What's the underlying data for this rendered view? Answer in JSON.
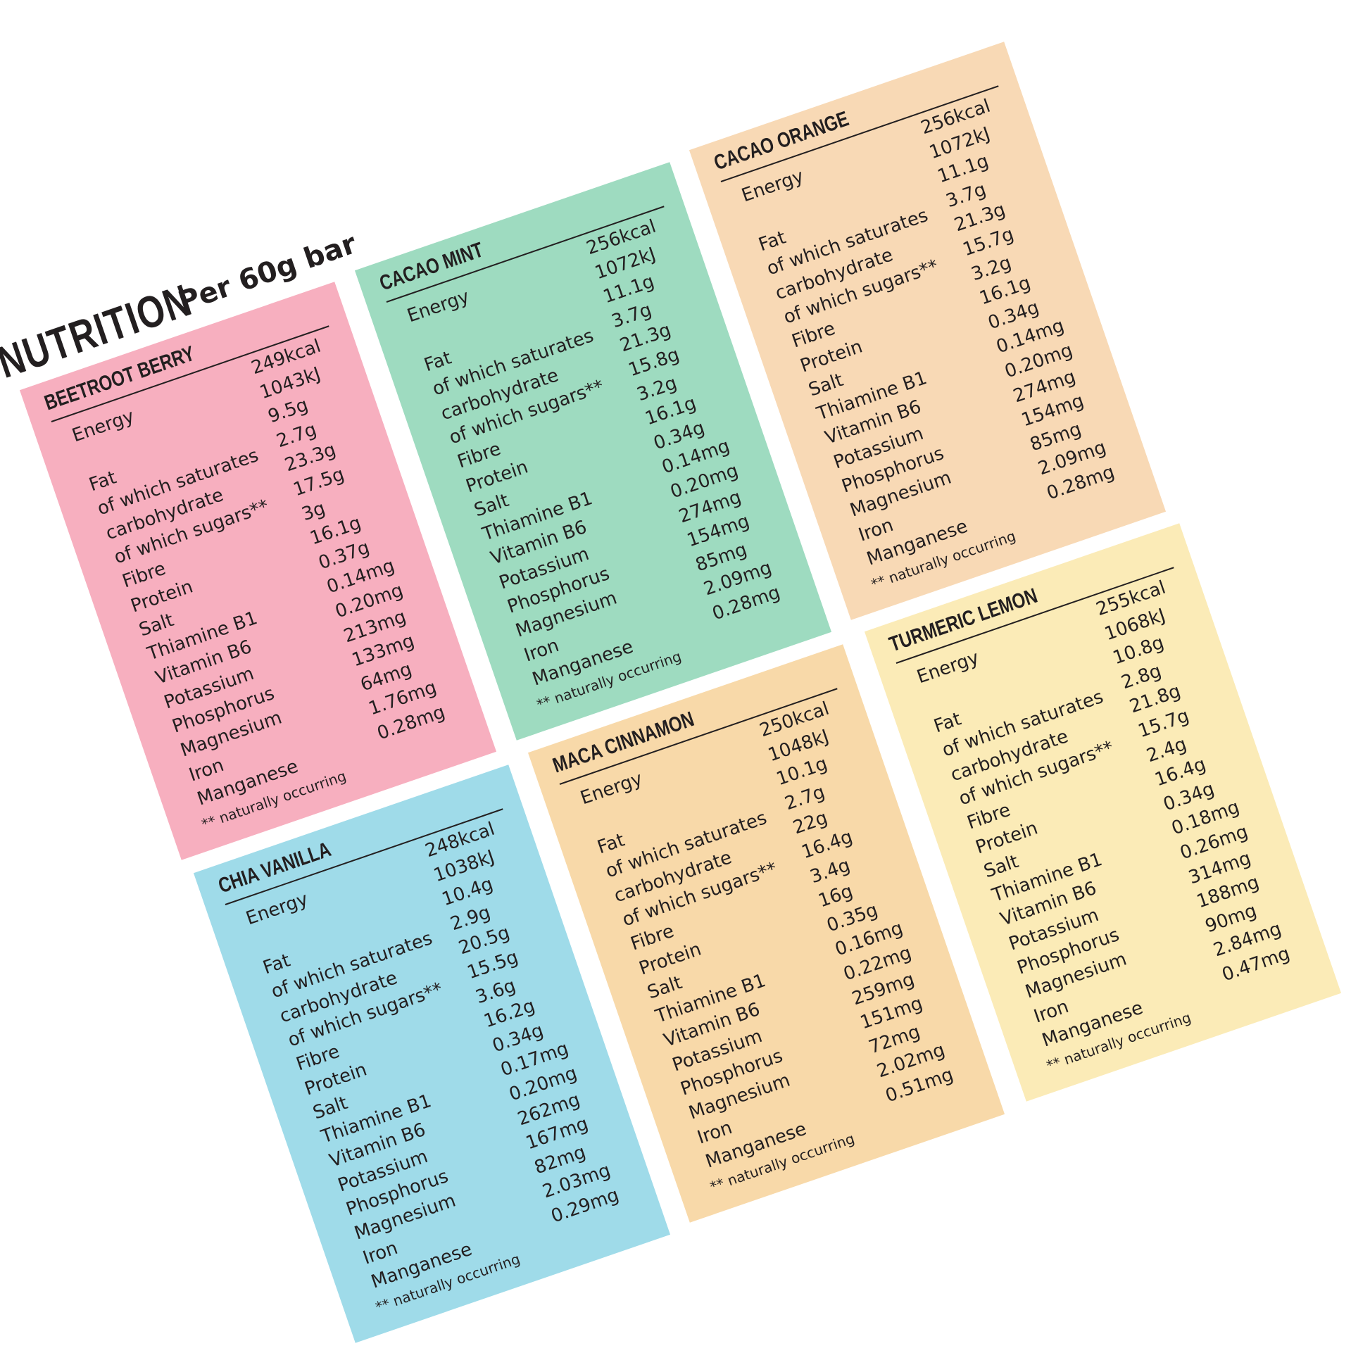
{
  "heading": {
    "title": "NUTRITION",
    "subtitle": "Per 60g bar"
  },
  "labels": [
    "Energy",
    "Fat",
    "of which saturates",
    "carbohydrate",
    "of which sugars**",
    "Fibre",
    "Protein",
    "Salt",
    "Thiamine B1",
    "Vitamin B6",
    "Potassium",
    "Phosphorus",
    "Magnesium",
    "Iron",
    "Manganese"
  ],
  "footnote": "** naturally occurring",
  "panels": [
    {
      "name": "BEETROOT BERRY",
      "color": "#f7afbf",
      "values": [
        "249kcal",
        "1043kJ",
        "9.5g",
        "2.7g",
        "23.3g",
        "17.5g",
        "3g",
        "16.1g",
        "0.37g",
        "0.14mg",
        "0.20mg",
        "213mg",
        "133mg",
        "64mg",
        "1.76mg",
        "0.28mg"
      ]
    },
    {
      "name": "CACAO MINT",
      "color": "#9edbc0",
      "values": [
        "256kcal",
        "1072kJ",
        "11.1g",
        "3.7g",
        "21.3g",
        "15.8g",
        "3.2g",
        "16.1g",
        "0.34g",
        "0.14mg",
        "0.20mg",
        "274mg",
        "154mg",
        "85mg",
        "2.09mg",
        "0.28mg"
      ]
    },
    {
      "name": "CACAO ORANGE",
      "color": "#f8d9b5",
      "values": [
        "256kcal",
        "1072kJ",
        "11.1g",
        "3.7g",
        "21.3g",
        "15.7g",
        "3.2g",
        "16.1g",
        "0.34g",
        "0.14mg",
        "0.20mg",
        "274mg",
        "154mg",
        "85mg",
        "2.09mg",
        "0.28mg"
      ]
    },
    {
      "name": "CHIA VANILLA",
      "color": "#9fdbe9",
      "values": [
        "248kcal",
        "1038kJ",
        "10.4g",
        "2.9g",
        "20.5g",
        "15.5g",
        "3.6g",
        "16.2g",
        "0.34g",
        "0.17mg",
        "0.20mg",
        "262mg",
        "167mg",
        "82mg",
        "2.03mg",
        "0.29mg"
      ]
    },
    {
      "name": "MACA CINNAMON",
      "color": "#f8d9a9",
      "values": [
        "250kcal",
        "1048kJ",
        "10.1g",
        "2.7g",
        "22g",
        "16.4g",
        "3.4g",
        "16g",
        "0.35g",
        "0.16mg",
        "0.22mg",
        "259mg",
        "151mg",
        "72mg",
        "2.02mg",
        "0.51mg"
      ]
    },
    {
      "name": "TURMERIC LEMON",
      "color": "#fbebb7",
      "values": [
        "255kcal",
        "1068kJ",
        "10.8g",
        "2.8g",
        "21.8g",
        "15.7g",
        "2.4g",
        "16.4g",
        "0.34g",
        "0.18mg",
        "0.26mg",
        "314mg",
        "188mg",
        "90mg",
        "2.84mg",
        "0.47mg"
      ]
    }
  ]
}
